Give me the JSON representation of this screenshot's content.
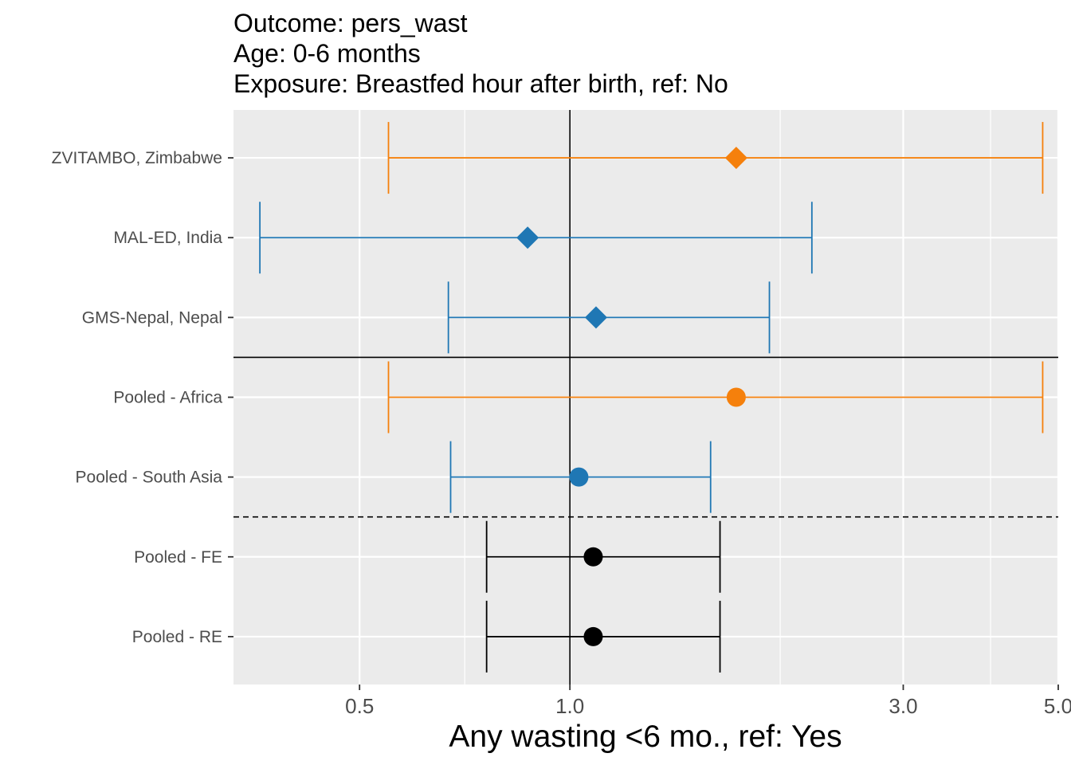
{
  "title_lines": [
    "Outcome: pers_wast",
    "Age: 0-6 months",
    "Exposure: Breastfed hour after birth, ref: No"
  ],
  "colors": {
    "panel_bg": "#ebebeb",
    "grid": "#ffffff",
    "Africa": "#f5800c",
    "South Asia": "#1f77b4",
    "Pooled": "#000000",
    "axis_text": "#4d4d4d"
  },
  "chart_data": {
    "type": "forest",
    "title": "Outcome: pers_wast / Age: 0-6 months / Exposure: Breastfed hour after birth, ref: No",
    "xlabel": "Any wasting  <6 mo., ref: Yes",
    "ylabel": "",
    "x_scale": "log",
    "xlim": [
      0.33,
      5.0
    ],
    "x_ticks": [
      0.5,
      1.0,
      3.0,
      5.0
    ],
    "x_tick_labels": [
      "0.5",
      "1.0",
      "3.0",
      "5.0"
    ],
    "minor_x": [
      0.707,
      2.0,
      4.0
    ],
    "reference_line_x": 1.0,
    "grid": true,
    "rows": [
      {
        "label": "ZVITAMBO, Zimbabwe",
        "est": 1.73,
        "lo": 0.55,
        "hi": 4.75,
        "region": "Africa",
        "shape": "diamond"
      },
      {
        "label": "MAL-ED, India",
        "est": 0.87,
        "lo": 0.36,
        "hi": 2.22,
        "region": "South Asia",
        "shape": "diamond"
      },
      {
        "label": "GMS-Nepal, Nepal",
        "est": 1.09,
        "lo": 0.67,
        "hi": 1.93,
        "region": "South Asia",
        "shape": "diamond"
      },
      {
        "label": "Pooled - Africa",
        "est": 1.73,
        "lo": 0.55,
        "hi": 4.75,
        "region": "Africa",
        "shape": "circle"
      },
      {
        "label": "Pooled - South Asia",
        "est": 1.03,
        "lo": 0.675,
        "hi": 1.59,
        "region": "South Asia",
        "shape": "circle"
      },
      {
        "label": "Pooled - FE",
        "est": 1.08,
        "lo": 0.76,
        "hi": 1.64,
        "region": "Pooled",
        "shape": "circle"
      },
      {
        "label": "Pooled - RE",
        "est": 1.08,
        "lo": 0.76,
        "hi": 1.64,
        "region": "Pooled",
        "shape": "circle"
      }
    ],
    "separators": [
      {
        "between": [
          "GMS-Nepal, Nepal",
          "Pooled - Africa"
        ],
        "style": "solid"
      },
      {
        "between": [
          "Pooled - South Asia",
          "Pooled - FE"
        ],
        "style": "dashed"
      }
    ]
  }
}
